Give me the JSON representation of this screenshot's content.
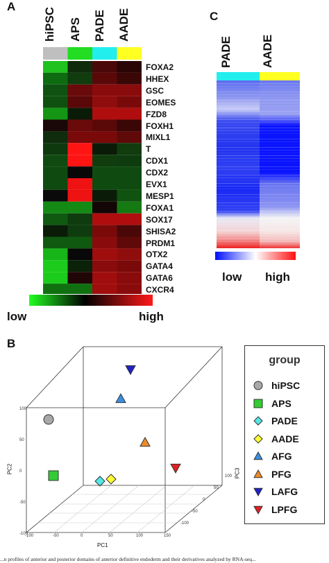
{
  "panels": {
    "a": "A",
    "b": "B",
    "c": "C"
  },
  "heatmap_a": {
    "columns": [
      "hiPSC",
      "APS",
      "PADE",
      "AADE"
    ],
    "column_bar_colors": [
      "#bfbfbf",
      "#22dd22",
      "#22eeee",
      "#ffff22"
    ],
    "genes": [
      "FOXA2",
      "HHEX",
      "GSC",
      "EOMES",
      "FZD8",
      "FOXH1",
      "MIXL1",
      "T",
      "CDX1",
      "CDX2",
      "EVX1",
      "MESP1",
      "FOXA1",
      "SOX17",
      "SHISA2",
      "PRDM1",
      "OTX2",
      "GATA4",
      "GATA6",
      "CXCR4"
    ],
    "cells": [
      [
        "#1fc21f",
        "#102a0c",
        "#4a0808",
        "#2a0505"
      ],
      [
        "#0e6b10",
        "#103c0e",
        "#5a0808",
        "#3a0606"
      ],
      [
        "#0f5212",
        "#6a0a0a",
        "#8a0b0b",
        "#8a0b0b"
      ],
      [
        "#0f5010",
        "#5a0808",
        "#900d0d",
        "#7a0a0a"
      ],
      [
        "#149614",
        "#0a1c08",
        "#b00e0e",
        "#b00e0e"
      ],
      [
        "#1a0808",
        "#6a0a0a",
        "#5a0808",
        "#3a0606"
      ],
      [
        "#0f2c0c",
        "#7a0a0a",
        "#7a0a0a",
        "#600909"
      ],
      [
        "#0e380e",
        "#ff1414",
        "#0a1c08",
        "#103c0e"
      ],
      [
        "#0f4a10",
        "#ff1414",
        "#103c0e",
        "#0f3c0e"
      ],
      [
        "#0f4a10",
        "#080808",
        "#0f4a10",
        "#0f4a10"
      ],
      [
        "#0f4a10",
        "#ee1212",
        "#0f4a10",
        "#0f4a10"
      ],
      [
        "#0a0a0a",
        "#ee1212",
        "#0a1c08",
        "#105210"
      ],
      [
        "#148a14",
        "#148a14",
        "#140606",
        "#157a12"
      ],
      [
        "#0f5a10",
        "#0f3c0e",
        "#b00e0e",
        "#b00e0e"
      ],
      [
        "#0a1c08",
        "#0f3c0e",
        "#7a0a0a",
        "#4a0808"
      ],
      [
        "#0f5a10",
        "#0f5a10",
        "#8a0b0b",
        "#600909"
      ],
      [
        "#17b517",
        "#080808",
        "#a00d0d",
        "#900d0d"
      ],
      [
        "#1ccc1c",
        "#0a2208",
        "#8a0b0b",
        "#7a0a0a"
      ],
      [
        "#1ccc1c",
        "#200606",
        "#a00d0d",
        "#8a0b0b"
      ],
      [
        "#107010",
        "#107010",
        "#a00d0d",
        "#8a0b0b"
      ]
    ],
    "scale_low": "low",
    "scale_high": "high"
  },
  "heatmap_c": {
    "columns": [
      "PADE",
      "AADE"
    ],
    "column_bar_colors": [
      "#22eeee",
      "#ffff22"
    ],
    "scale_low": "low",
    "scale_high": "high"
  },
  "pca": {
    "axis_labels": {
      "x": "PC1",
      "y": "PC2",
      "z": "PC3"
    },
    "y_ticks": [
      "100",
      "50",
      "0",
      "-50",
      "-100"
    ],
    "x_ticks": [
      "-100",
      "-50",
      "0",
      "50",
      "100",
      "150"
    ],
    "z_ticks": [
      "100",
      "50",
      "0",
      "-50",
      "-100"
    ]
  },
  "legend": {
    "title": "group",
    "items": [
      {
        "label": "hiPSC",
        "shape": "circle",
        "color": "#a8a8a8"
      },
      {
        "label": "APS",
        "shape": "square",
        "color": "#33cc33"
      },
      {
        "label": "PADE",
        "shape": "diamond",
        "color": "#55e6e6"
      },
      {
        "label": "AADE",
        "shape": "diamond",
        "color": "#ffff33"
      },
      {
        "label": "AFG",
        "shape": "triangle-up",
        "color": "#3a8fe0"
      },
      {
        "label": "PFG",
        "shape": "triangle-up",
        "color": "#f08a28"
      },
      {
        "label": "LAFG",
        "shape": "triangle-down",
        "color": "#2020c8"
      },
      {
        "label": "LPFG",
        "shape": "triangle-down",
        "color": "#e02020"
      }
    ]
  },
  "caption": "...n profiles of anterior and posterior domains of anterior definitive endoderm and their derivatives analyzed by RNA-seq..."
}
